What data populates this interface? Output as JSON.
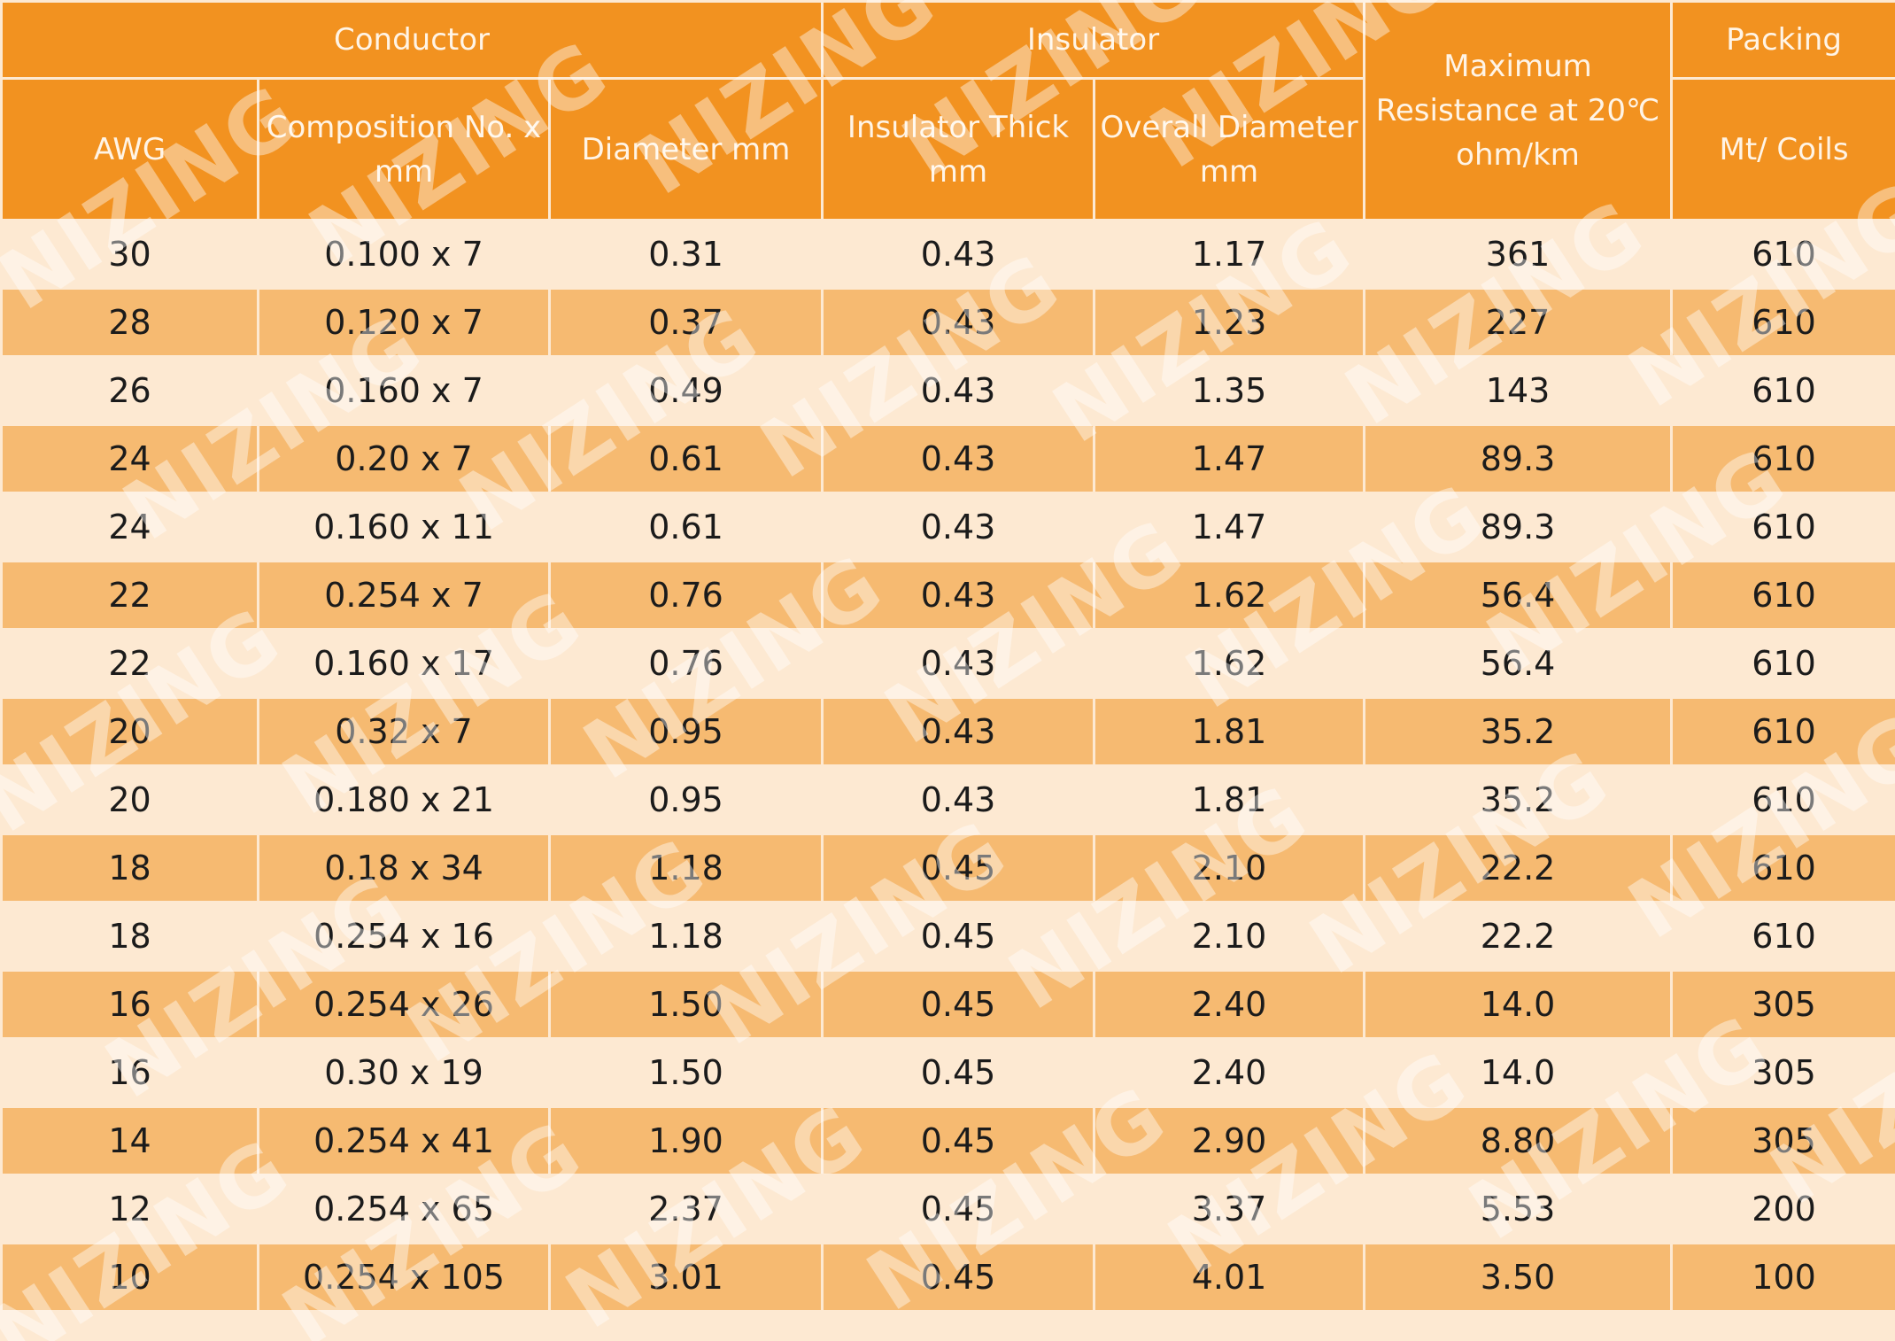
{
  "table": {
    "group_headers": {
      "conductor": "Conductor",
      "insulator": "Insulator",
      "resistance": "Maximum Resistance at 20℃ ohm/km",
      "packing": "Packing"
    },
    "column_headers": {
      "awg": "AWG",
      "composition": "Composition No. x mm",
      "diameter": "Diameter mm",
      "insulator_thick": "Insulator Thick mm",
      "overall_diameter": "Overall Diameter mm",
      "packing_unit": "Mt/ Coils"
    },
    "rows": [
      {
        "awg": "30",
        "composition": "0.100 x 7",
        "diameter": "0.31",
        "insulator_thick": "0.43",
        "overall_diameter": "1.17",
        "resistance": "361",
        "packing": "610"
      },
      {
        "awg": "28",
        "composition": "0.120 x 7",
        "diameter": "0.37",
        "insulator_thick": "0.43",
        "overall_diameter": "1.23",
        "resistance": "227",
        "packing": "610"
      },
      {
        "awg": "26",
        "composition": "0.160 x 7",
        "diameter": "0.49",
        "insulator_thick": "0.43",
        "overall_diameter": "1.35",
        "resistance": "143",
        "packing": "610"
      },
      {
        "awg": "24",
        "composition": "0.20 x 7",
        "diameter": "0.61",
        "insulator_thick": "0.43",
        "overall_diameter": "1.47",
        "resistance": "89.3",
        "packing": "610"
      },
      {
        "awg": "24",
        "composition": "0.160 x 11",
        "diameter": "0.61",
        "insulator_thick": "0.43",
        "overall_diameter": "1.47",
        "resistance": "89.3",
        "packing": "610"
      },
      {
        "awg": "22",
        "composition": "0.254 x 7",
        "diameter": "0.76",
        "insulator_thick": "0.43",
        "overall_diameter": "1.62",
        "resistance": "56.4",
        "packing": "610"
      },
      {
        "awg": "22",
        "composition": "0.160 x 17",
        "diameter": "0.76",
        "insulator_thick": "0.43",
        "overall_diameter": "1.62",
        "resistance": "56.4",
        "packing": "610"
      },
      {
        "awg": "20",
        "composition": "0.32 x 7",
        "diameter": "0.95",
        "insulator_thick": "0.43",
        "overall_diameter": "1.81",
        "resistance": "35.2",
        "packing": "610"
      },
      {
        "awg": "20",
        "composition": "0.180 x 21",
        "diameter": "0.95",
        "insulator_thick": "0.43",
        "overall_diameter": "1.81",
        "resistance": "35.2",
        "packing": "610"
      },
      {
        "awg": "18",
        "composition": "0.18 x 34",
        "diameter": "1.18",
        "insulator_thick": "0.45",
        "overall_diameter": "2.10",
        "resistance": "22.2",
        "packing": "610"
      },
      {
        "awg": "18",
        "composition": "0.254 x 16",
        "diameter": "1.18",
        "insulator_thick": "0.45",
        "overall_diameter": "2.10",
        "resistance": "22.2",
        "packing": "610"
      },
      {
        "awg": "16",
        "composition": "0.254 x 26",
        "diameter": "1.50",
        "insulator_thick": "0.45",
        "overall_diameter": "2.40",
        "resistance": "14.0",
        "packing": "305"
      },
      {
        "awg": "16",
        "composition": "0.30 x 19",
        "diameter": "1.50",
        "insulator_thick": "0.45",
        "overall_diameter": "2.40",
        "resistance": "14.0",
        "packing": "305"
      },
      {
        "awg": "14",
        "composition": "0.254 x 41",
        "diameter": "1.90",
        "insulator_thick": "0.45",
        "overall_diameter": "2.90",
        "resistance": "8.80",
        "packing": "305"
      },
      {
        "awg": "12",
        "composition": "0.254 x 65",
        "diameter": "2.37",
        "insulator_thick": "0.45",
        "overall_diameter": "3.37",
        "resistance": "5.53",
        "packing": "200"
      },
      {
        "awg": "10",
        "composition": "0.254 x 105",
        "diameter": "3.01",
        "insulator_thick": "0.45",
        "overall_diameter": "4.01",
        "resistance": "3.50",
        "packing": "100"
      }
    ]
  },
  "watermark": {
    "text": "NIZING"
  },
  "colors": {
    "header_bg": "#f29220",
    "row_light": "#fde9d2",
    "row_dark": "#f6ba71"
  }
}
